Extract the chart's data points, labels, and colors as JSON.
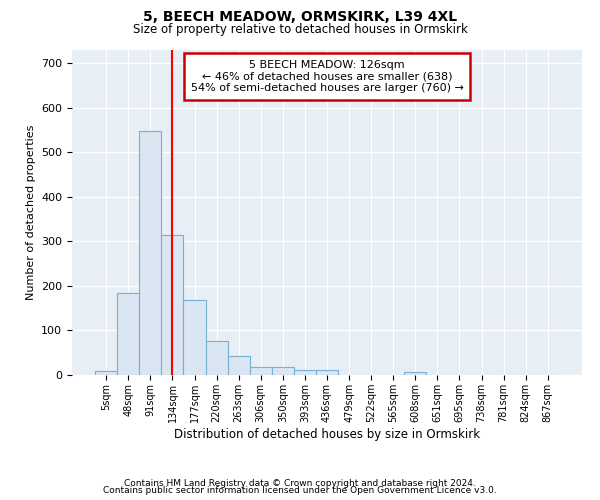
{
  "title": "5, BEECH MEADOW, ORMSKIRK, L39 4XL",
  "subtitle": "Size of property relative to detached houses in Ormskirk",
  "xlabel": "Distribution of detached houses by size in Ormskirk",
  "ylabel": "Number of detached properties",
  "bin_labels": [
    "5sqm",
    "48sqm",
    "91sqm",
    "134sqm",
    "177sqm",
    "220sqm",
    "263sqm",
    "306sqm",
    "350sqm",
    "393sqm",
    "436sqm",
    "479sqm",
    "522sqm",
    "565sqm",
    "608sqm",
    "651sqm",
    "695sqm",
    "738sqm",
    "781sqm",
    "824sqm",
    "867sqm"
  ],
  "bar_heights": [
    8,
    185,
    548,
    315,
    168,
    77,
    42,
    18,
    18,
    12,
    12,
    0,
    0,
    0,
    7,
    0,
    0,
    0,
    0,
    0,
    0
  ],
  "bar_color": "#dae6f2",
  "bar_edge_color": "#7aafd4",
  "ylim": [
    0,
    730
  ],
  "yticks": [
    0,
    100,
    200,
    300,
    400,
    500,
    600,
    700
  ],
  "red_line_x": 3.0,
  "annotation_text": "5 BEECH MEADOW: 126sqm\n← 46% of detached houses are smaller (638)\n54% of semi-detached houses are larger (760) →",
  "annotation_box_color": "#ffffff",
  "annotation_box_edge_color": "#cc0000",
  "bg_color": "#ffffff",
  "plot_bg_color": "#e8eef5",
  "footer_line1": "Contains HM Land Registry data © Crown copyright and database right 2024.",
  "footer_line2": "Contains public sector information licensed under the Open Government Licence v3.0.",
  "grid_color": "#ffffff"
}
